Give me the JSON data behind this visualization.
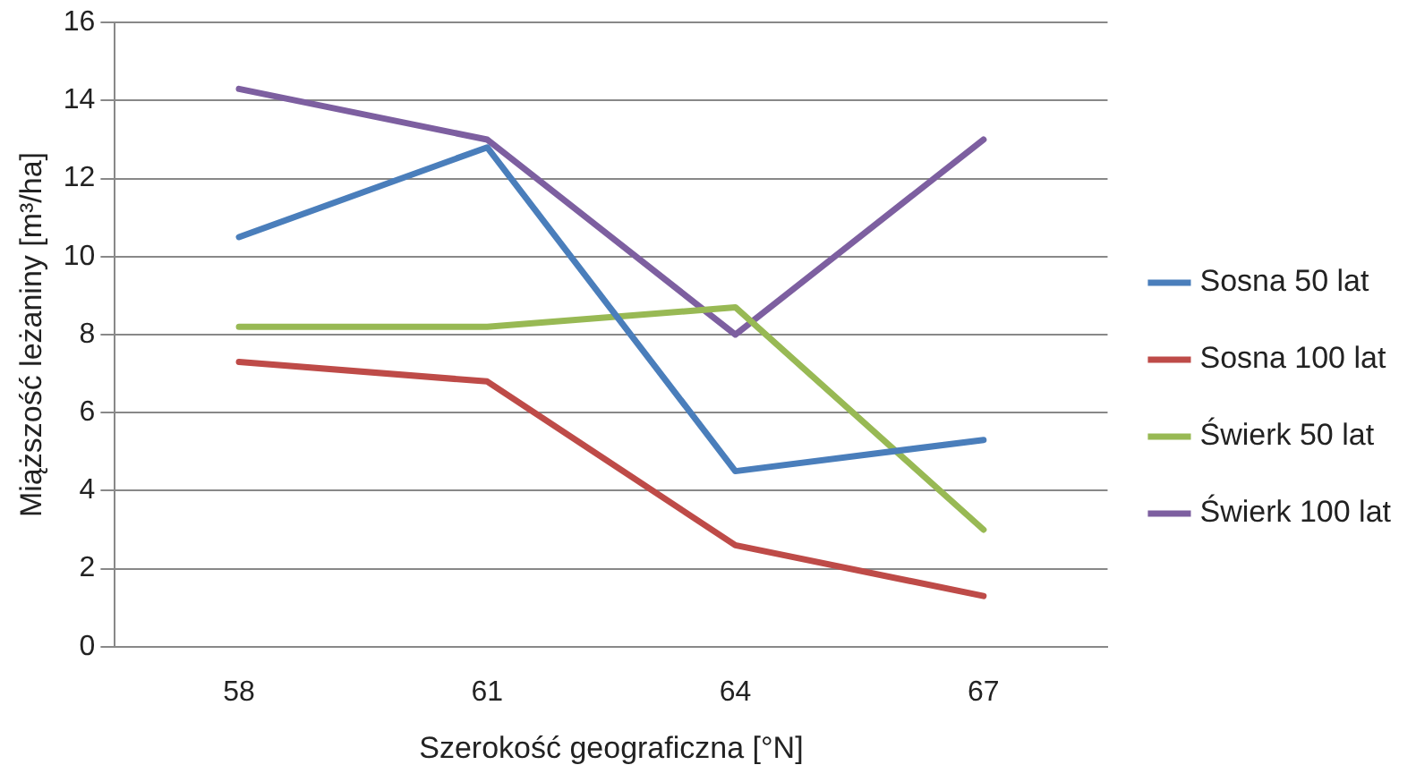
{
  "chart_data": {
    "type": "line",
    "xlabel": "Szerokość geograficzna [°N]",
    "ylabel": "Miąższość leżaniny [m³/ha]",
    "categories": [
      "58",
      "61",
      "64",
      "67"
    ],
    "series": [
      {
        "name": "Sosna 50 lat",
        "color": "#4a7ebb",
        "values": [
          10.5,
          12.8,
          4.5,
          5.3
        ]
      },
      {
        "name": "Sosna 100 lat",
        "color": "#be4b48",
        "values": [
          7.3,
          6.8,
          2.6,
          1.3
        ]
      },
      {
        "name": "Świerk 50 lat",
        "color": "#98b954",
        "values": [
          8.2,
          8.2,
          8.7,
          3.0
        ]
      },
      {
        "name": "Świerk 100 lat",
        "color": "#7d5fa0",
        "values": [
          14.3,
          13.0,
          8.0,
          13.0
        ]
      }
    ],
    "ylim": [
      0,
      16
    ],
    "yticks": [
      0,
      2,
      4,
      6,
      8,
      10,
      12,
      14,
      16
    ],
    "grid": "y",
    "legend": "right",
    "marker": "none",
    "line_style": "solid"
  }
}
